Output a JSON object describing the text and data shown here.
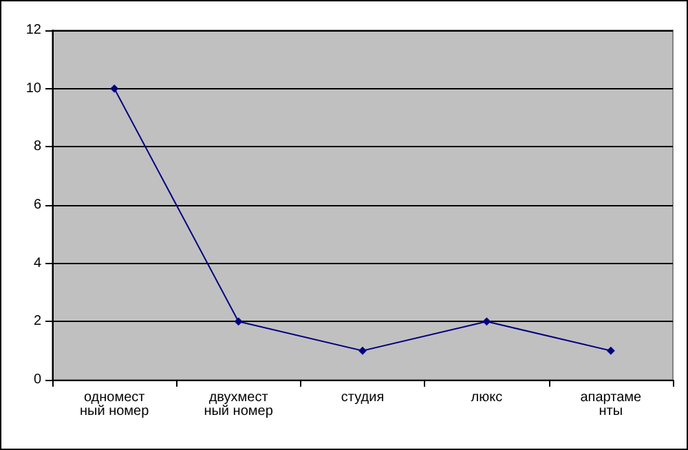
{
  "chart_data": {
    "type": "line",
    "categories": [
      "одноместный номер",
      "двухместный номер",
      "студия",
      "люкс",
      "апартаменты"
    ],
    "series": [
      {
        "color": "#000080",
        "values": [
          10,
          2,
          1,
          2,
          1
        ]
      }
    ],
    "ylim": [
      0,
      12
    ],
    "yticks": [
      0,
      2,
      4,
      6,
      8,
      10,
      12
    ],
    "grid": "y",
    "marker": "diamond",
    "line_style": "solid"
  }
}
